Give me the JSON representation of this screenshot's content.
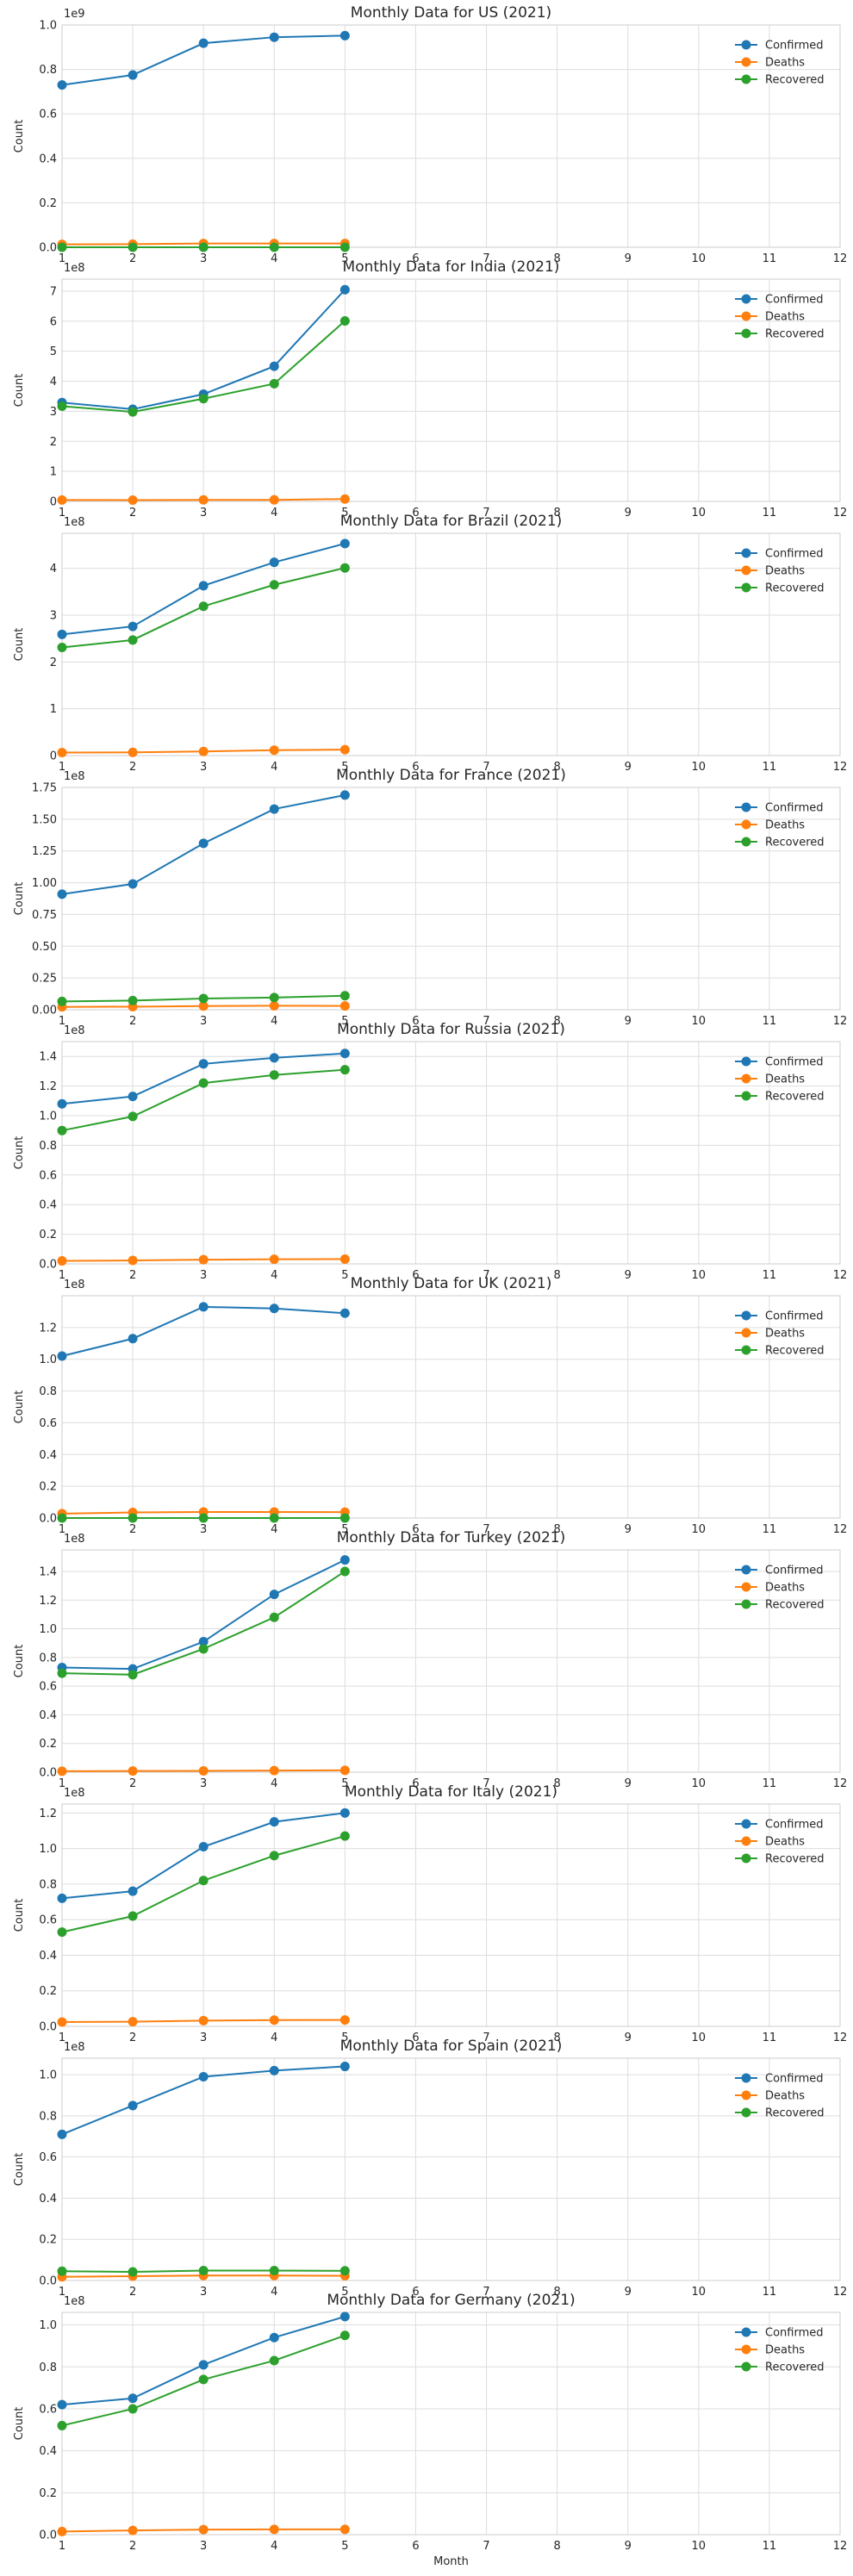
{
  "chart_data": [
    {
      "type": "line",
      "title": "Monthly Data for US (2021)",
      "ylabel": "Count",
      "xlabel": "",
      "offset_label": "1e9",
      "x": [
        1,
        2,
        3,
        4,
        5
      ],
      "xlim": [
        1,
        12
      ],
      "ylim": [
        0,
        1.0
      ],
      "yticks": [
        0.0,
        0.2,
        0.4,
        0.6,
        0.8,
        1.0
      ],
      "scale": 1000000000,
      "grid": true,
      "legend": "top-right",
      "series": [
        {
          "name": "Confirmed",
          "color": "#1f77b4",
          "values": [
            730000000,
            775000000,
            918000000,
            945000000,
            952000000
          ]
        },
        {
          "name": "Deaths",
          "color": "#ff7f0e",
          "values": [
            13000000,
            14000000,
            17000000,
            17000000,
            17000000
          ]
        },
        {
          "name": "Recovered",
          "color": "#2ca02c",
          "values": [
            0,
            0,
            0,
            0,
            0
          ]
        }
      ]
    },
    {
      "type": "line",
      "title": "Monthly Data for India (2021)",
      "ylabel": "Count",
      "xlabel": "",
      "offset_label": "1e8",
      "x": [
        1,
        2,
        3,
        4,
        5
      ],
      "xlim": [
        1,
        12
      ],
      "ylim": [
        0,
        7.4
      ],
      "yticks": [
        0,
        1,
        2,
        3,
        4,
        5,
        6,
        7
      ],
      "scale": 100000000,
      "grid": true,
      "legend": "top-right",
      "series": [
        {
          "name": "Confirmed",
          "color": "#1f77b4",
          "values": [
            329000000,
            307000000,
            357000000,
            450000000,
            705000000
          ]
        },
        {
          "name": "Deaths",
          "color": "#ff7f0e",
          "values": [
            4700000,
            4400000,
            4900000,
            5200000,
            8000000
          ]
        },
        {
          "name": "Recovered",
          "color": "#2ca02c",
          "values": [
            317000000,
            298000000,
            342000000,
            392000000,
            601000000
          ]
        }
      ]
    },
    {
      "type": "line",
      "title": "Monthly Data for Brazil (2021)",
      "ylabel": "Count",
      "xlabel": "",
      "offset_label": "1e8",
      "x": [
        1,
        2,
        3,
        4,
        5
      ],
      "xlim": [
        1,
        12
      ],
      "ylim": [
        0,
        4.75
      ],
      "yticks": [
        0,
        1,
        2,
        3,
        4
      ],
      "scale": 100000000,
      "grid": true,
      "legend": "top-right",
      "series": [
        {
          "name": "Confirmed",
          "color": "#1f77b4",
          "values": [
            259000000,
            276000000,
            363000000,
            413000000,
            453000000
          ]
        },
        {
          "name": "Deaths",
          "color": "#ff7f0e",
          "values": [
            6500000,
            6800000,
            8700000,
            11600000,
            12700000
          ]
        },
        {
          "name": "Recovered",
          "color": "#2ca02c",
          "values": [
            231000000,
            247000000,
            319000000,
            365000000,
            401000000
          ]
        }
      ]
    },
    {
      "type": "line",
      "title": "Monthly Data for France (2021)",
      "ylabel": "Count",
      "xlabel": "",
      "offset_label": "1e8",
      "x": [
        1,
        2,
        3,
        4,
        5
      ],
      "xlim": [
        1,
        12
      ],
      "ylim": [
        0,
        1.75
      ],
      "yticks": [
        0.0,
        0.25,
        0.5,
        0.75,
        1.0,
        1.25,
        1.5,
        1.75
      ],
      "tick_decimals": 2,
      "scale": 100000000,
      "grid": true,
      "legend": "top-right",
      "series": [
        {
          "name": "Confirmed",
          "color": "#1f77b4",
          "values": [
            91000000,
            99000000,
            131000000,
            158000000,
            169000000
          ]
        },
        {
          "name": "Deaths",
          "color": "#ff7f0e",
          "values": [
            2200000,
            2400000,
            2900000,
            3100000,
            3000000
          ]
        },
        {
          "name": "Recovered",
          "color": "#2ca02c",
          "values": [
            6500000,
            7200000,
            8800000,
            9600000,
            11000000
          ]
        }
      ]
    },
    {
      "type": "line",
      "title": "Monthly Data for Russia (2021)",
      "ylabel": "Count",
      "xlabel": "",
      "offset_label": "1e8",
      "x": [
        1,
        2,
        3,
        4,
        5
      ],
      "xlim": [
        1,
        12
      ],
      "ylim": [
        0,
        1.5
      ],
      "yticks": [
        0.0,
        0.2,
        0.4,
        0.6,
        0.8,
        1.0,
        1.2,
        1.4
      ],
      "scale": 100000000,
      "grid": true,
      "legend": "top-right",
      "series": [
        {
          "name": "Confirmed",
          "color": "#1f77b4",
          "values": [
            108000000,
            113000000,
            135000000,
            139000000,
            142000000
          ]
        },
        {
          "name": "Deaths",
          "color": "#ff7f0e",
          "values": [
            2000000,
            2300000,
            2800000,
            3100000,
            3200000
          ]
        },
        {
          "name": "Recovered",
          "color": "#2ca02c",
          "values": [
            90000000,
            99500000,
            122000000,
            127500000,
            131000000
          ]
        }
      ]
    },
    {
      "type": "line",
      "title": "Monthly Data for UK (2021)",
      "ylabel": "Count",
      "xlabel": "",
      "offset_label": "1e8",
      "x": [
        1,
        2,
        3,
        4,
        5
      ],
      "xlim": [
        1,
        12
      ],
      "ylim": [
        0,
        1.4
      ],
      "yticks": [
        0.0,
        0.2,
        0.4,
        0.6,
        0.8,
        1.0,
        1.2
      ],
      "scale": 100000000,
      "grid": true,
      "legend": "top-right",
      "series": [
        {
          "name": "Confirmed",
          "color": "#1f77b4",
          "values": [
            102000000,
            113000000,
            133000000,
            132000000,
            129000000
          ]
        },
        {
          "name": "Deaths",
          "color": "#ff7f0e",
          "values": [
            2800000,
            3500000,
            3800000,
            3800000,
            3700000
          ]
        },
        {
          "name": "Recovered",
          "color": "#2ca02c",
          "values": [
            0,
            0,
            0,
            0,
            0
          ]
        }
      ]
    },
    {
      "type": "line",
      "title": "Monthly Data for Turkey (2021)",
      "ylabel": "Count",
      "xlabel": "",
      "offset_label": "1e8",
      "x": [
        1,
        2,
        3,
        4,
        5
      ],
      "xlim": [
        1,
        12
      ],
      "ylim": [
        0,
        1.55
      ],
      "yticks": [
        0.0,
        0.2,
        0.4,
        0.6,
        0.8,
        1.0,
        1.2,
        1.4
      ],
      "scale": 100000000,
      "grid": true,
      "legend": "top-right",
      "series": [
        {
          "name": "Confirmed",
          "color": "#1f77b4",
          "values": [
            73000000,
            72000000,
            91000000,
            124000000,
            148000000
          ]
        },
        {
          "name": "Deaths",
          "color": "#ff7f0e",
          "values": [
            700000,
            800000,
            900000,
            1100000,
            1300000
          ]
        },
        {
          "name": "Recovered",
          "color": "#2ca02c",
          "values": [
            69000000,
            68000000,
            86000000,
            108000000,
            140000000
          ]
        }
      ]
    },
    {
      "type": "line",
      "title": "Monthly Data for Italy (2021)",
      "ylabel": "Count",
      "xlabel": "",
      "offset_label": "1e8",
      "x": [
        1,
        2,
        3,
        4,
        5
      ],
      "xlim": [
        1,
        12
      ],
      "ylim": [
        0,
        1.25
      ],
      "yticks": [
        0.0,
        0.2,
        0.4,
        0.6,
        0.8,
        1.0,
        1.2
      ],
      "scale": 100000000,
      "grid": true,
      "legend": "top-right",
      "series": [
        {
          "name": "Confirmed",
          "color": "#1f77b4",
          "values": [
            72000000,
            76000000,
            101000000,
            115000000,
            120000000
          ]
        },
        {
          "name": "Deaths",
          "color": "#ff7f0e",
          "values": [
            2400000,
            2600000,
            3200000,
            3500000,
            3600000
          ]
        },
        {
          "name": "Recovered",
          "color": "#2ca02c",
          "values": [
            53000000,
            62000000,
            82000000,
            96000000,
            107000000
          ]
        }
      ]
    },
    {
      "type": "line",
      "title": "Monthly Data for Spain (2021)",
      "ylabel": "Count",
      "xlabel": "",
      "offset_label": "1e8",
      "x": [
        1,
        2,
        3,
        4,
        5
      ],
      "xlim": [
        1,
        12
      ],
      "ylim": [
        0,
        1.08
      ],
      "yticks": [
        0.0,
        0.2,
        0.4,
        0.6,
        0.8,
        1.0
      ],
      "scale": 100000000,
      "grid": true,
      "legend": "top-right",
      "series": [
        {
          "name": "Confirmed",
          "color": "#1f77b4",
          "values": [
            71000000,
            85000000,
            99000000,
            102000000,
            104000000
          ]
        },
        {
          "name": "Deaths",
          "color": "#ff7f0e",
          "values": [
            1800000,
            2100000,
            2400000,
            2400000,
            2300000
          ]
        },
        {
          "name": "Recovered",
          "color": "#2ca02c",
          "values": [
            4500000,
            4200000,
            4800000,
            4800000,
            4700000
          ]
        }
      ]
    },
    {
      "type": "line",
      "title": "Monthly Data for Germany (2021)",
      "ylabel": "Count",
      "xlabel": "Month",
      "offset_label": "1e8",
      "x": [
        1,
        2,
        3,
        4,
        5
      ],
      "xlim": [
        1,
        12
      ],
      "ylim": [
        0,
        1.06
      ],
      "yticks": [
        0.0,
        0.2,
        0.4,
        0.6,
        0.8,
        1.0
      ],
      "scale": 100000000,
      "grid": true,
      "legend": "top-right",
      "series": [
        {
          "name": "Confirmed",
          "color": "#1f77b4",
          "values": [
            62000000,
            65000000,
            81000000,
            94000000,
            104000000
          ]
        },
        {
          "name": "Deaths",
          "color": "#ff7f0e",
          "values": [
            1500000,
            2000000,
            2400000,
            2500000,
            2500000
          ]
        },
        {
          "name": "Recovered",
          "color": "#2ca02c",
          "values": [
            52000000,
            60000000,
            74000000,
            83000000,
            95000000
          ]
        }
      ]
    }
  ],
  "xticks": [
    1,
    2,
    3,
    4,
    5,
    6,
    7,
    8,
    9,
    10,
    11,
    12
  ]
}
